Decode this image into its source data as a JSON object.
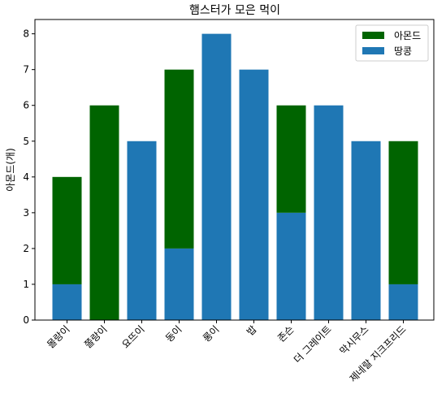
{
  "chart_data": {
    "type": "bar",
    "stacked": true,
    "title": "햄스터가 모은 먹이",
    "xlabel": "",
    "ylabel": "아몬드(개)",
    "categories": [
      "몰랑이",
      "쫄랑이",
      "요뜨이",
      "동이",
      "롱이",
      "밥",
      "존슨",
      "더 그레이트",
      "막시무스",
      "제네랄 지크프리드"
    ],
    "series": [
      {
        "name": "땅콩",
        "color": "#1f77b4",
        "values": [
          1,
          0,
          5,
          2,
          8,
          7,
          3,
          6,
          5,
          1
        ]
      },
      {
        "name": "아몬드",
        "color": "#006400",
        "values": [
          3,
          6,
          0,
          5,
          0,
          0,
          3,
          0,
          0,
          4
        ]
      }
    ],
    "ylim": [
      0,
      8.4
    ],
    "yticks": [
      0,
      1,
      2,
      3,
      4,
      5,
      6,
      7,
      8
    ],
    "grid": false,
    "legend_position": "top-right",
    "legend_order": [
      "아몬드",
      "땅콩"
    ]
  }
}
